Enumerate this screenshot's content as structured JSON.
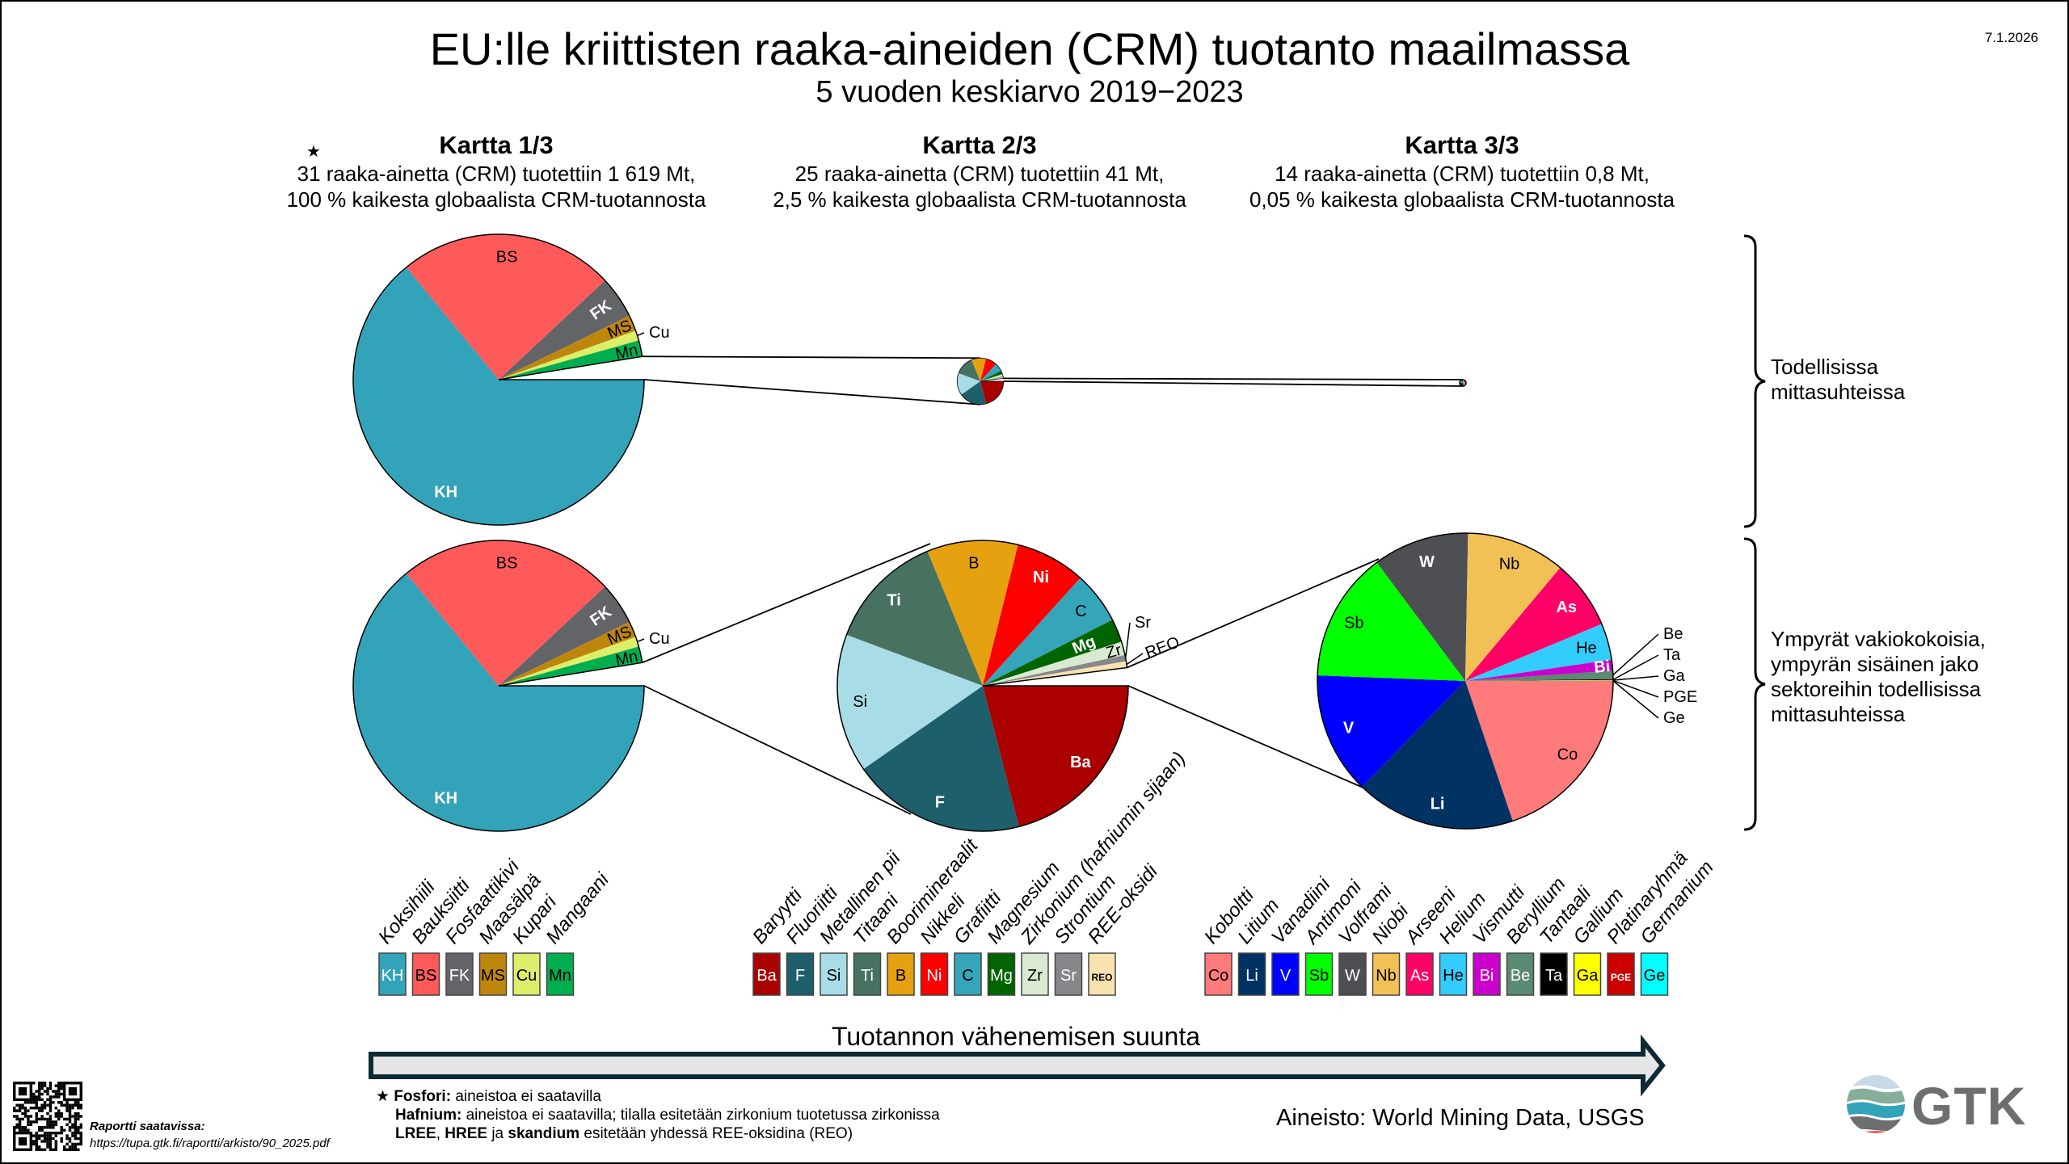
{
  "header": {
    "title": "EU:lle kriittisten raaka-aineiden (CRM) tuotanto maailmassa",
    "subtitle": "5 vuoden keskiarvo 2019−2023",
    "date": "7.1.2026"
  },
  "maps": [
    {
      "title": "Kartta 1/3",
      "star": "★",
      "line1": "31 raaka-ainetta (CRM) tuotettiin 1 619 Mt,",
      "line2": "100 % kaikesta globaalista CRM-tuotannosta"
    },
    {
      "title": "Kartta 2/3",
      "line1": "25 raaka-ainetta (CRM) tuotettiin 41 Mt,",
      "line2": "2,5 % kaikesta globaalista CRM-tuotannosta"
    },
    {
      "title": "Kartta 3/3",
      "line1": "14 raaka-ainetta (CRM) tuotettiin 0,8 Mt,",
      "line2": "0,05 % kaikesta globaalista CRM-tuotannosta"
    }
  ],
  "side_labels": {
    "top": [
      "Todellisissa",
      "mittasuhteissa"
    ],
    "bottom": [
      "Ympyrät vakiokokoisia,",
      "ympyrän sisäinen jako",
      "sektoreihin todellisissa",
      "mittasuhteissa"
    ]
  },
  "chart_data": [
    {
      "type": "pie",
      "title": "Kartta 1/3",
      "unit": "percent of pie (estimated)",
      "start": "east, clockwise",
      "slices": [
        {
          "code": "KH",
          "name": "Koksihiili",
          "value": 64.05,
          "color": "#33A3BA",
          "text_color": "#ffffff"
        },
        {
          "code": "BS",
          "name": "Bauksiitti",
          "value": 24.0,
          "color": "#FF5A5A",
          "text_color": "#000000"
        },
        {
          "code": "FK",
          "name": "Fosfaattikivi",
          "value": 4.7,
          "color": "#636468",
          "text_color": "#ffffff"
        },
        {
          "code": "MS",
          "name": "Maasälpä",
          "value": 1.8,
          "color": "#BF860E",
          "text_color": "#000000"
        },
        {
          "code": "Cu",
          "name": "Kupari",
          "value": 1.1,
          "color": "#DCEE6A",
          "text_color": "#000000"
        },
        {
          "code": "Mn",
          "name": "Mangaani",
          "value": 1.8,
          "color": "#00AD4F",
          "text_color": "#000000"
        }
      ],
      "remainder_label": "Kartta 2/3 + 3/3",
      "remainder": 2.55
    },
    {
      "type": "pie",
      "title": "Kartta 2/3",
      "unit": "percent of pie (estimated)",
      "start": "east, clockwise",
      "slices": [
        {
          "code": "Ba",
          "name": "Baryytti",
          "value": 21.0,
          "color": "#AA0000",
          "text_color": "#ffffff"
        },
        {
          "code": "F",
          "name": "Fluoriitti",
          "value": 19.3,
          "color": "#1D5F6B",
          "text_color": "#ffffff"
        },
        {
          "code": "Si",
          "name": "Metallinen pii",
          "value": 15.4,
          "color": "#A8DCE6",
          "text_color": "#000000"
        },
        {
          "code": "Ti",
          "name": "Titaani",
          "value": 13.1,
          "color": "#477260",
          "text_color": "#ffffff"
        },
        {
          "code": "B",
          "name": "Boorimineraalit",
          "value": 10.1,
          "color": "#E5A10F",
          "text_color": "#000000"
        },
        {
          "code": "Ni",
          "name": "Nikkeli",
          "value": 7.8,
          "color": "#FF0000",
          "text_color": "#ffffff"
        },
        {
          "code": "C",
          "name": "Grafiitti",
          "value": 5.8,
          "color": "#35A5BA",
          "text_color": "#000000"
        },
        {
          "code": "Mg",
          "name": "Magnesium",
          "value": 2.6,
          "color": "#006400",
          "text_color": "#ffffff"
        },
        {
          "code": "Zr",
          "name": "Zirkonium (hafniumin sijaan)",
          "value": 1.5,
          "color": "#DAEAD2",
          "text_color": "#000000"
        },
        {
          "code": "Sr",
          "name": "Strontium",
          "value": 0.7,
          "color": "#86878B",
          "text_color": "#ffffff"
        },
        {
          "code": "REO",
          "name": "REE-oksidi",
          "value": 0.7,
          "color": "#F8E2B0",
          "text_color": "#000000"
        }
      ],
      "remainder_label": "Kartta 3/3",
      "remainder": 2.0
    },
    {
      "type": "pie",
      "title": "Kartta 3/3",
      "unit": "percent of pie (estimated)",
      "start": "east, clockwise",
      "slices": [
        {
          "code": "Co",
          "name": "Koboltti",
          "value": 19.8,
          "color": "#FF7A7A",
          "text_color": "#000000"
        },
        {
          "code": "Li",
          "name": "Litium",
          "value": 17.5,
          "color": "#003263",
          "text_color": "#ffffff"
        },
        {
          "code": "V",
          "name": "Vanadiini",
          "value": 13.3,
          "color": "#0000FF",
          "text_color": "#ffffff"
        },
        {
          "code": "Sb",
          "name": "Antimoni",
          "value": 14.2,
          "color": "#00FF00",
          "text_color": "#000000"
        },
        {
          "code": "W",
          "name": "Volframi",
          "value": 10.5,
          "color": "#4E4F53",
          "text_color": "#ffffff"
        },
        {
          "code": "Nb",
          "name": "Niobi",
          "value": 10.8,
          "color": "#F2C156",
          "text_color": "#000000"
        },
        {
          "code": "As",
          "name": "Arseeni",
          "value": 7.6,
          "color": "#FF0066",
          "text_color": "#ffffff"
        },
        {
          "code": "He",
          "name": "Helium",
          "value": 4.0,
          "color": "#33CCFF",
          "text_color": "#000000"
        },
        {
          "code": "Bi",
          "name": "Vismutti",
          "value": 1.2,
          "color": "#CC00CC",
          "text_color": "#ffffff"
        },
        {
          "code": "Be",
          "name": "Beryllium",
          "value": 0.9,
          "color": "#5A8A72",
          "text_color": "#ffffff"
        },
        {
          "code": "Ta",
          "name": "Tantaali",
          "value": 0.1,
          "color": "#000000",
          "text_color": "#ffffff"
        },
        {
          "code": "Ga",
          "name": "Gallium",
          "value": 0.05,
          "color": "#FFFF00",
          "text_color": "#000000"
        },
        {
          "code": "PGE",
          "name": "Platinaryhmä",
          "value": 0.03,
          "color": "#CC0000",
          "text_color": "#ffffff"
        },
        {
          "code": "Ge",
          "name": "Germanium",
          "value": 0.02,
          "color": "#00FFFF",
          "text_color": "#000000"
        }
      ],
      "remainder": 0
    }
  ],
  "arrow": {
    "label": "Tuotannon vähenemisen suunta",
    "fill": "#E6E6E6",
    "stroke": "#0F2A35"
  },
  "notes": [
    {
      "marker": "★",
      "bold": "Fosfori:",
      "text": " aineistoa ei saatavilla"
    },
    {
      "bold": "Hafnium:",
      "text": " aineistoa ei saatavilla; tilalla esitetään zirkonium tuotetussa zirkonissa"
    },
    {
      "bold1": "LREE",
      "mid1": ", ",
      "bold2": "HREE",
      "mid2": " ja ",
      "bold3": "skandium",
      "text": " esitetään yhdessä REE-oksidina (REO)"
    }
  ],
  "source": "Aineisto: World Mining Data, USGS",
  "report": {
    "label": "Raportti saatavissa:",
    "url": "https://tupa.gtk.fi/raportti/arkisto/90_2025.pdf"
  },
  "logo": {
    "text": "GTK"
  }
}
